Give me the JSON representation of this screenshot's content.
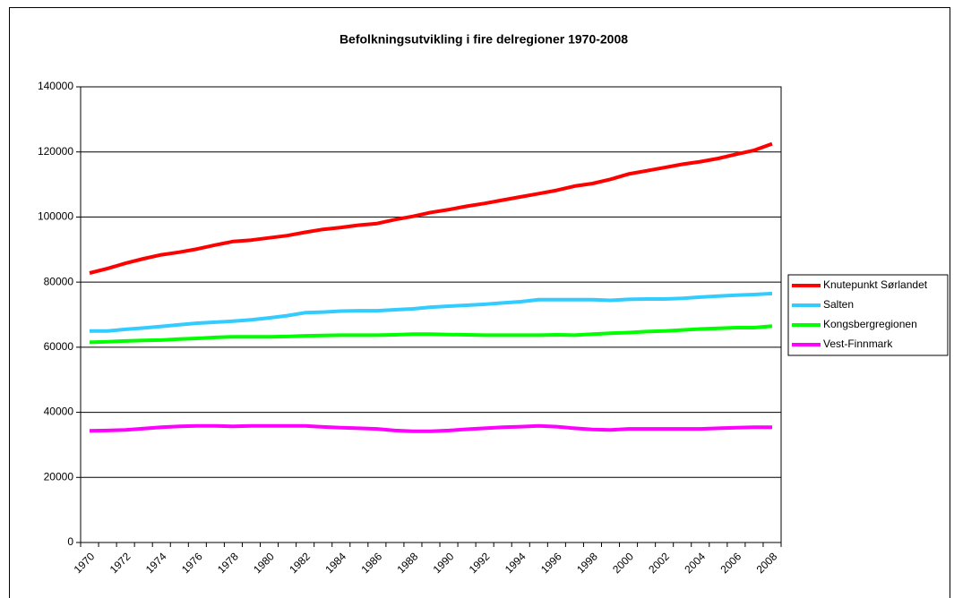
{
  "chart_data": {
    "type": "line",
    "title": "Befolkningsutvikling i fire delregioner 1970-2008",
    "categories": [
      "1970",
      null,
      "1972",
      null,
      "1974",
      null,
      "1976",
      null,
      "1978",
      null,
      "1980",
      null,
      "1982",
      null,
      "1984",
      null,
      "1986",
      null,
      "1988",
      null,
      "1990",
      null,
      "1992",
      null,
      "1994",
      null,
      "1996",
      null,
      "1998",
      null,
      "2000",
      null,
      "2002",
      null,
      "2004",
      null,
      "2006",
      null,
      "2008"
    ],
    "series": [
      {
        "name": "Knutepunkt Sørlandet",
        "color": "#ff0000",
        "values": [
          82800,
          84200,
          85800,
          87200,
          88400,
          89200,
          90200,
          91400,
          92500,
          92900,
          93600,
          94300,
          95300,
          96200,
          96800,
          97500,
          98000,
          99200,
          100200,
          101400,
          102300,
          103300,
          104200,
          105200,
          106200,
          107200,
          108200,
          109500,
          110300,
          111600,
          113200,
          114200,
          115200,
          116200,
          117000,
          118000,
          119300,
          120500,
          122500
        ]
      },
      {
        "name": "Salten",
        "color": "#33ccff",
        "values": [
          65000,
          65000,
          65500,
          65900,
          66400,
          66900,
          67400,
          67700,
          68000,
          68400,
          69000,
          69700,
          70600,
          70800,
          71100,
          71200,
          71200,
          71500,
          71800,
          72300,
          72600,
          72900,
          73200,
          73600,
          74000,
          74600,
          74600,
          74600,
          74600,
          74400,
          74700,
          74800,
          74800,
          75000,
          75400,
          75700,
          76000,
          76200,
          76500
        ]
      },
      {
        "name": "Kongsbergregionen",
        "color": "#00ff00",
        "values": [
          61500,
          61700,
          61900,
          62100,
          62200,
          62500,
          62700,
          63000,
          63200,
          63200,
          63200,
          63300,
          63500,
          63600,
          63700,
          63700,
          63700,
          63800,
          64000,
          64000,
          63900,
          63800,
          63700,
          63700,
          63700,
          63700,
          63800,
          63700,
          64000,
          64300,
          64500,
          64800,
          65000,
          65300,
          65600,
          65800,
          66000,
          66000,
          66500
        ]
      },
      {
        "name": "Vest-Finnmark",
        "color": "#ff00ff",
        "values": [
          34300,
          34400,
          34600,
          35000,
          35400,
          35700,
          35800,
          35800,
          35700,
          35800,
          35800,
          35800,
          35800,
          35500,
          35300,
          35100,
          34900,
          34400,
          34200,
          34200,
          34400,
          34800,
          35100,
          35400,
          35600,
          35800,
          35600,
          35100,
          34700,
          34600,
          34900,
          34900,
          34900,
          34900,
          34900,
          35100,
          35300,
          35400,
          35400
        ]
      }
    ],
    "ylim": [
      0,
      140000
    ],
    "yticks": [
      0,
      20000,
      40000,
      60000,
      80000,
      100000,
      120000,
      140000
    ],
    "grid": true,
    "legend": "right"
  }
}
